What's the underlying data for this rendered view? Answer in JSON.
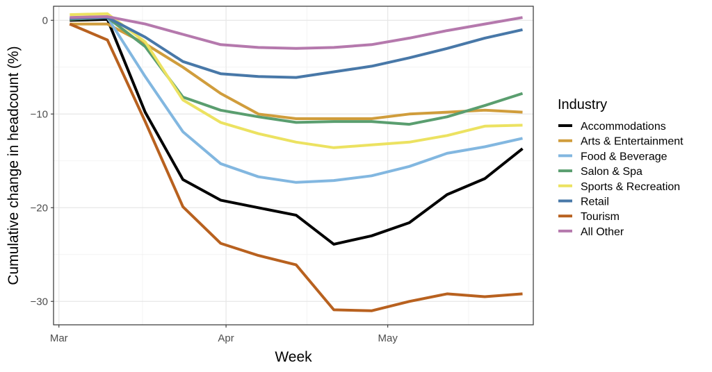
{
  "chart_data": {
    "type": "line",
    "title": "",
    "xlabel": "Week",
    "ylabel": "Cumulative change in headcount (%)",
    "ylim": [
      -32.5,
      1.5
    ],
    "xlim": [
      "2020-02-29",
      "2020-05-28"
    ],
    "x_ticks": [
      {
        "date": "2020-03-01",
        "label": "Mar"
      },
      {
        "date": "2020-04-01",
        "label": "Apr"
      },
      {
        "date": "2020-05-01",
        "label": "May"
      }
    ],
    "y_ticks": [
      {
        "value": 0,
        "label": "0"
      },
      {
        "value": -10,
        "label": "−10"
      },
      {
        "value": -20,
        "label": "−20"
      },
      {
        "value": -30,
        "label": "−30"
      }
    ],
    "grid": true,
    "legend": {
      "title": "Industry",
      "position": "right"
    },
    "x": [
      "2020-03-03",
      "2020-03-10",
      "2020-03-17",
      "2020-03-24",
      "2020-03-31",
      "2020-04-07",
      "2020-04-14",
      "2020-04-21",
      "2020-04-28",
      "2020-05-05",
      "2020-05-12",
      "2020-05-19",
      "2020-05-26"
    ],
    "series": [
      {
        "name": "Accommodations",
        "color": "#000000",
        "values": [
          0.0,
          0.1,
          -9.8,
          -17.0,
          -19.2,
          -20.0,
          -20.8,
          -23.9,
          -23.0,
          -21.6,
          -18.6,
          -16.9,
          -13.7
        ]
      },
      {
        "name": "Arts & Entertainment",
        "color": "#d09d3c",
        "values": [
          -0.4,
          -0.4,
          -2.5,
          -5.0,
          -7.8,
          -10.0,
          -10.5,
          -10.5,
          -10.5,
          -10.0,
          -9.8,
          -9.6,
          -9.8
        ]
      },
      {
        "name": "Food & Beverage",
        "color": "#82b7e0",
        "values": [
          0.2,
          0.3,
          -6.0,
          -11.9,
          -15.3,
          -16.7,
          -17.3,
          -17.1,
          -16.6,
          -15.6,
          -14.2,
          -13.5,
          -12.6
        ]
      },
      {
        "name": "Salon & Spa",
        "color": "#5a9e6f",
        "values": [
          0.1,
          0.3,
          -2.8,
          -8.2,
          -9.6,
          -10.3,
          -10.9,
          -10.8,
          -10.8,
          -11.1,
          -10.3,
          -9.1,
          -7.8
        ]
      },
      {
        "name": "Sports & Recreation",
        "color": "#ece261",
        "values": [
          0.6,
          0.7,
          -2.3,
          -8.5,
          -10.9,
          -12.1,
          -13.0,
          -13.6,
          -13.3,
          -13.0,
          -12.3,
          -11.3,
          -11.2
        ]
      },
      {
        "name": "Retail",
        "color": "#4878a8",
        "values": [
          0.2,
          0.3,
          -1.8,
          -4.4,
          -5.7,
          -6.0,
          -6.1,
          -5.5,
          -4.9,
          -4.0,
          -3.0,
          -1.9,
          -1.0
        ]
      },
      {
        "name": "Tourism",
        "color": "#b8611f",
        "values": [
          -0.4,
          -2.1,
          -10.8,
          -19.9,
          -23.8,
          -25.1,
          -26.1,
          -30.9,
          -31.0,
          -30.0,
          -29.2,
          -29.5,
          -29.2
        ]
      },
      {
        "name": "All Other",
        "color": "#b579ad",
        "values": [
          0.3,
          0.4,
          -0.4,
          -1.5,
          -2.6,
          -2.9,
          -3.0,
          -2.9,
          -2.6,
          -1.9,
          -1.1,
          -0.4,
          0.3
        ]
      }
    ]
  }
}
